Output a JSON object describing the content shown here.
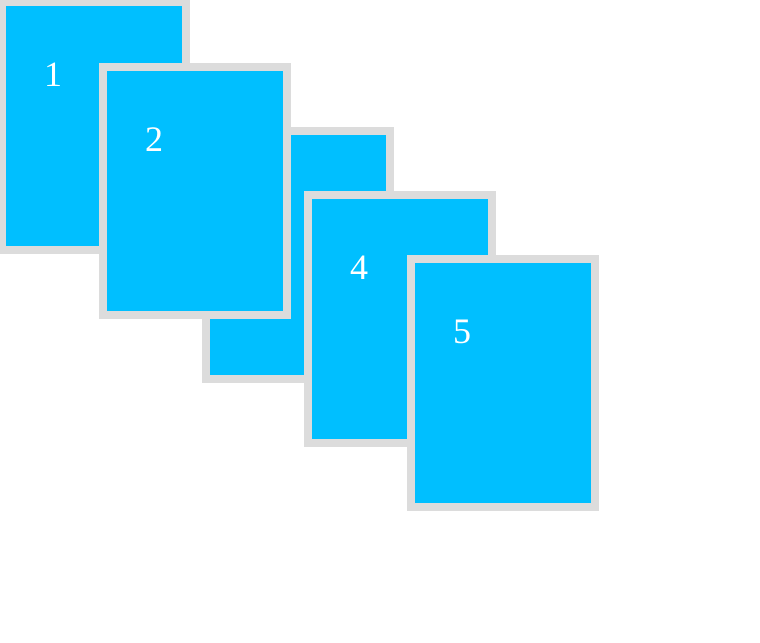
{
  "colors": {
    "card_fill": "#00bfff",
    "card_border": "#dcdcdc",
    "label": "#ffffff",
    "background": "#ffffff"
  },
  "cards": [
    {
      "label": "1"
    },
    {
      "label": "2"
    },
    {
      "label": ""
    },
    {
      "label": "4"
    },
    {
      "label": "5"
    }
  ]
}
